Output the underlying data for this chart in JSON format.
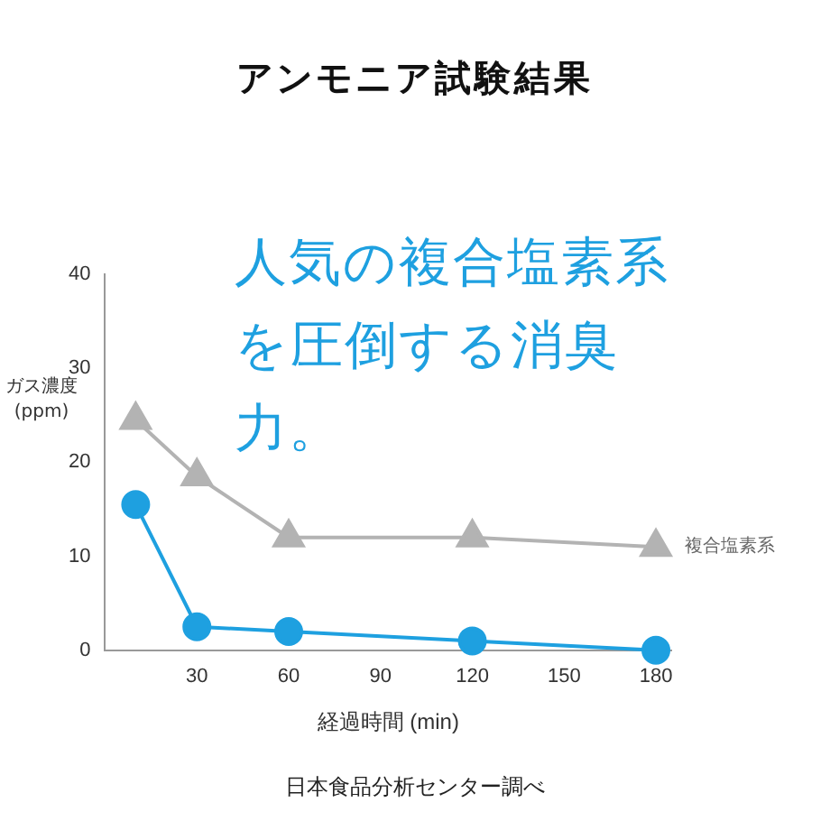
{
  "chart_data": {
    "type": "line",
    "title": "アンモニア試験結果",
    "xlabel": "経過時間 (min)",
    "ylabel": "ガス濃度\n(ppm)",
    "annotations": [
      "人気の複合塩素系を圧倒する消臭力。",
      "日本食品分析センター調べ"
    ],
    "x": [
      10,
      30,
      60,
      120,
      180
    ],
    "xlim": [
      0,
      185
    ],
    "xticks": [
      30,
      60,
      90,
      120,
      150,
      180
    ],
    "ylim": [
      0,
      40
    ],
    "yticks": [
      0,
      10,
      20,
      30,
      40
    ],
    "grid": false,
    "legend": false,
    "line_style": "solid",
    "series": [
      {
        "name": "複合塩素系",
        "color": "#b3b3b3",
        "marker": "triangle",
        "values": [
          24.5,
          18.5,
          12,
          12,
          11
        ]
      },
      {
        "color": "#1ea0e0",
        "marker": "circle",
        "values": [
          15.5,
          2.5,
          2,
          1,
          0
        ]
      }
    ]
  }
}
